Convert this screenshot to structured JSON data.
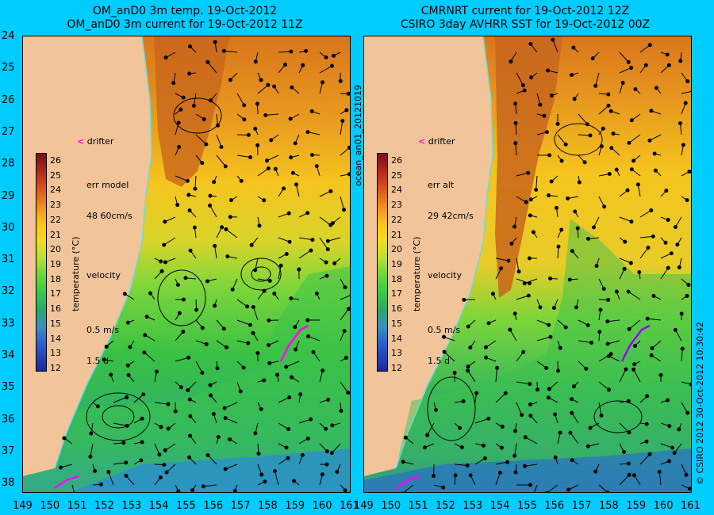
{
  "left_panel": {
    "title_line1": "OM_anD0 3m temp. 19-Oct-2012",
    "title_line2": "OM_anD0 3m current for 19-Oct-2012 11Z",
    "drifter_label": "drifter",
    "err_label": "err model",
    "err_value": "48 60cm/s",
    "velocity_label": "velocity",
    "velocity_scale": "0.5 m/s",
    "velocity_time": "1.5 d"
  },
  "right_panel": {
    "title_line1": "CMRNRT current for 19-Oct-2012 12Z",
    "title_line2": "CSIRO 3day AVHRR SST for 19-Oct-2012 00Z",
    "drifter_label": "drifter",
    "err_label": "err alt",
    "err_value": "29 42cm/s",
    "velocity_label": "velocity",
    "velocity_scale": "0.5 m/s",
    "velocity_time": "1.5 d"
  },
  "colorbar": {
    "title": "temperature (°C)",
    "ticks": [
      "26",
      "25",
      "24",
      "23",
      "22",
      "21",
      "20",
      "19",
      "18",
      "17",
      "16",
      "15",
      "14",
      "13",
      "12"
    ]
  },
  "axes": {
    "lat_ticks": [
      "24",
      "25",
      "26",
      "27",
      "28",
      "29",
      "30",
      "31",
      "32",
      "33",
      "34",
      "35",
      "36",
      "37",
      "38"
    ],
    "lon_ticks": [
      "149",
      "150",
      "151",
      "152",
      "153",
      "154",
      "155",
      "156",
      "157",
      "158",
      "159",
      "160",
      "161"
    ]
  },
  "side_label_left": "ocean_an01_20121019",
  "side_label_right": "© CSIRO 2012   30-Oct-2012 10:30:42",
  "colors": {
    "background": "#00ccff",
    "land": "#f2c49a",
    "drifter": "#ff00ff",
    "coastline": "#66e0e0"
  }
}
